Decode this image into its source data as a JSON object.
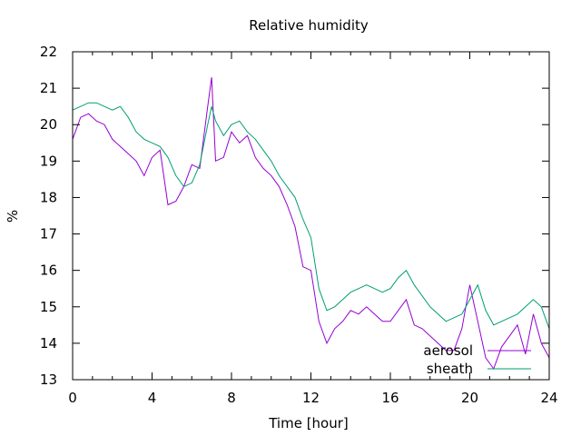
{
  "chart_data": {
    "type": "line",
    "title": "Relative humidity",
    "xlabel": "Time [hour]",
    "ylabel": "%",
    "xlim": [
      0,
      24
    ],
    "ylim": [
      13,
      22
    ],
    "x_ticks": [
      0,
      4,
      8,
      12,
      16,
      20,
      24
    ],
    "y_ticks": [
      13,
      14,
      15,
      16,
      17,
      18,
      19,
      20,
      21,
      22
    ],
    "grid": false,
    "legend_position": "bottom-right",
    "series": [
      {
        "name": "aerosol",
        "color": "#9400d3",
        "x": [
          0,
          0.4,
          0.8,
          1.2,
          1.6,
          2.0,
          2.4,
          2.8,
          3.2,
          3.6,
          4.0,
          4.4,
          4.8,
          5.2,
          5.6,
          6.0,
          6.4,
          6.8,
          7.0,
          7.2,
          7.6,
          8.0,
          8.4,
          8.8,
          9.2,
          9.6,
          10.0,
          10.4,
          10.8,
          11.2,
          11.6,
          12.0,
          12.4,
          12.8,
          13.2,
          13.6,
          14.0,
          14.4,
          14.8,
          15.2,
          15.6,
          16.0,
          16.4,
          16.8,
          17.2,
          17.6,
          18.0,
          18.4,
          18.8,
          19.2,
          19.6,
          20.0,
          20.4,
          20.8,
          21.2,
          21.6,
          22.0,
          22.4,
          22.8,
          23.2,
          23.6,
          24.0
        ],
        "values": [
          19.6,
          20.2,
          20.3,
          20.1,
          20.0,
          19.6,
          19.4,
          19.2,
          19.0,
          18.6,
          19.1,
          19.3,
          17.8,
          17.9,
          18.3,
          18.9,
          18.8,
          20.5,
          21.3,
          19.0,
          19.1,
          19.8,
          19.5,
          19.7,
          19.1,
          18.8,
          18.6,
          18.3,
          17.8,
          17.2,
          16.1,
          16.0,
          14.6,
          14.0,
          14.4,
          14.6,
          14.9,
          14.8,
          15.0,
          14.8,
          14.6,
          14.6,
          14.9,
          15.2,
          14.5,
          14.4,
          14.2,
          14.0,
          13.8,
          13.8,
          14.4,
          15.6,
          14.6,
          13.6,
          13.3,
          13.9,
          14.2,
          14.5,
          13.7,
          14.8,
          14.0,
          13.6
        ]
      },
      {
        "name": "sheath",
        "color": "#009e73",
        "x": [
          0,
          0.4,
          0.8,
          1.2,
          1.6,
          2.0,
          2.4,
          2.8,
          3.2,
          3.6,
          4.0,
          4.4,
          4.8,
          5.2,
          5.6,
          6.0,
          6.4,
          6.8,
          7.0,
          7.2,
          7.6,
          8.0,
          8.4,
          8.8,
          9.2,
          9.6,
          10.0,
          10.4,
          10.8,
          11.2,
          11.6,
          12.0,
          12.4,
          12.8,
          13.2,
          13.6,
          14.0,
          14.4,
          14.8,
          15.2,
          15.6,
          16.0,
          16.4,
          16.8,
          17.2,
          17.6,
          18.0,
          18.4,
          18.8,
          19.2,
          19.6,
          20.0,
          20.4,
          20.8,
          21.2,
          21.6,
          22.0,
          22.4,
          22.8,
          23.2,
          23.6,
          24.0
        ],
        "values": [
          20.4,
          20.5,
          20.6,
          20.6,
          20.5,
          20.4,
          20.5,
          20.2,
          19.8,
          19.6,
          19.5,
          19.4,
          19.1,
          18.6,
          18.3,
          18.4,
          18.9,
          20.0,
          20.5,
          20.1,
          19.7,
          20.0,
          20.1,
          19.8,
          19.6,
          19.3,
          19.0,
          18.6,
          18.3,
          18.0,
          17.4,
          16.9,
          15.5,
          14.9,
          15.0,
          15.2,
          15.4,
          15.5,
          15.6,
          15.5,
          15.4,
          15.5,
          15.8,
          16.0,
          15.6,
          15.3,
          15.0,
          14.8,
          14.6,
          14.7,
          14.8,
          15.2,
          15.6,
          14.9,
          14.5,
          14.6,
          14.7,
          14.8,
          15.0,
          15.2,
          15.0,
          14.4
        ]
      }
    ]
  }
}
